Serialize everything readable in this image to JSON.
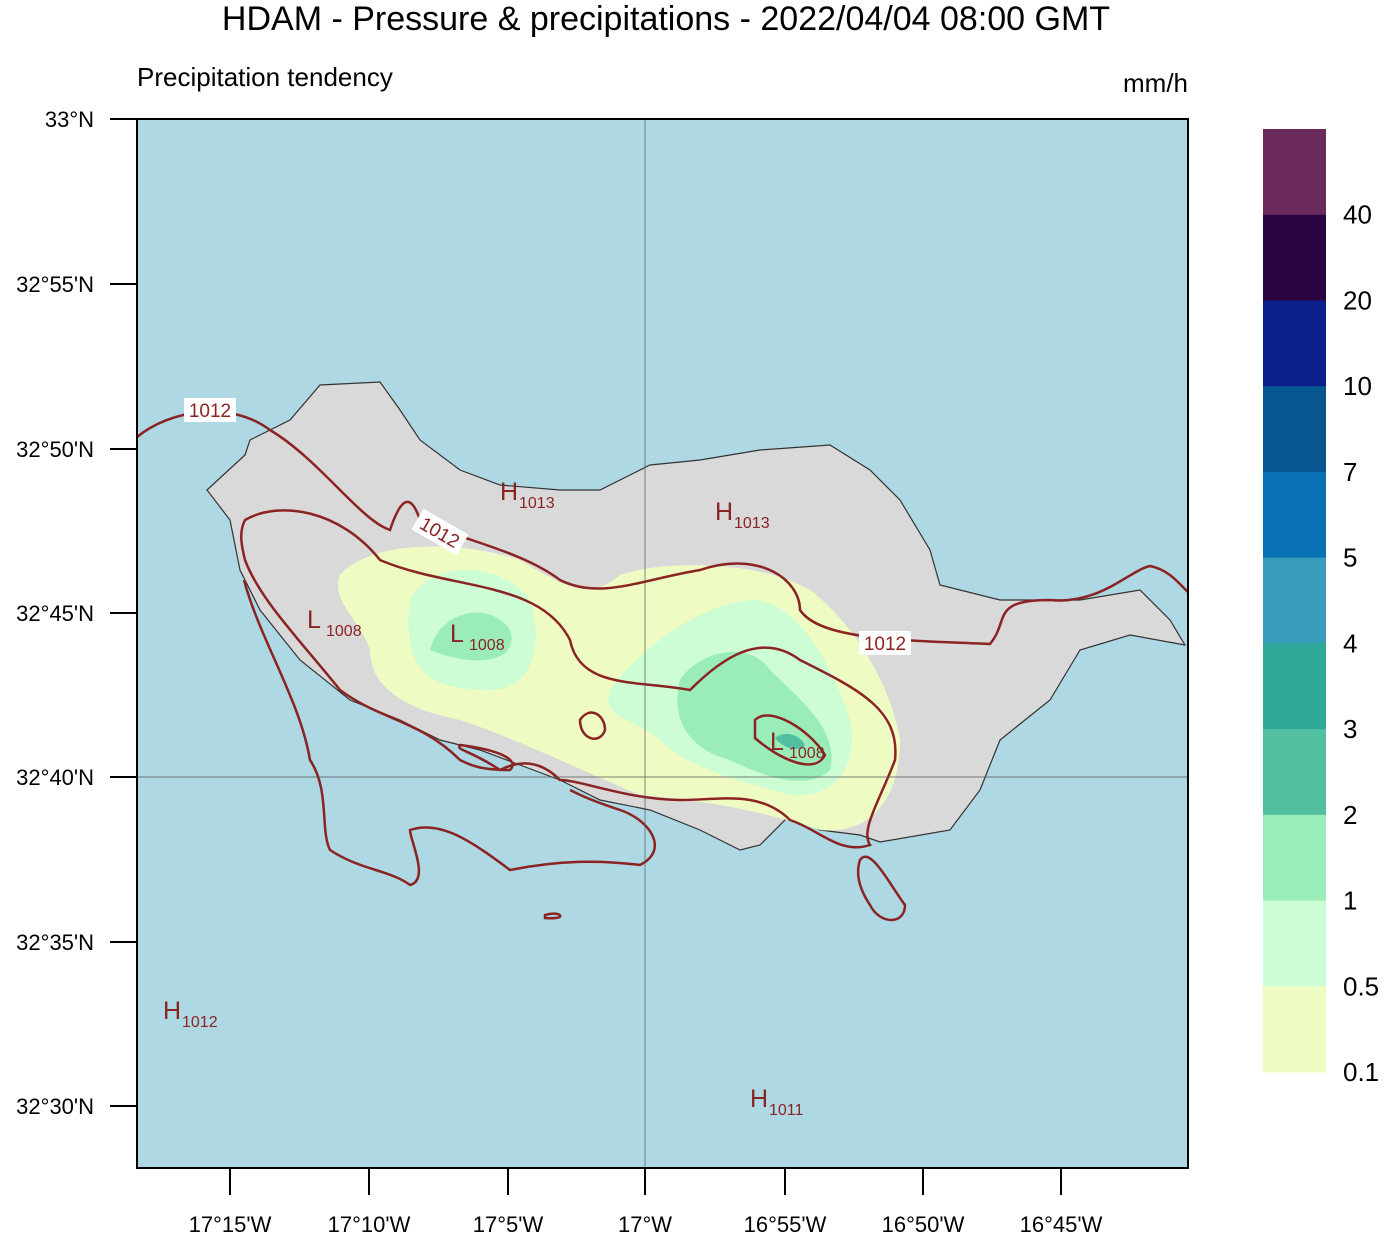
{
  "header": {
    "title": "HDAM - Pressure & precipitations  -  2022/04/04  08:00 GMT",
    "subtitle": "Precipitation tendency",
    "units": "mm/h"
  },
  "lat_labels": [
    "33°N",
    "32°55'N",
    "32°50'N",
    "32°45'N",
    "32°40'N",
    "32°35'N",
    "32°30'N"
  ],
  "lon_labels": [
    "17°15'W",
    "17°10'W",
    "17°5'W",
    "17°W",
    "16°55'W",
    "16°50'W",
    "16°45'W"
  ],
  "colorbar": {
    "labels": [
      "40",
      "20",
      "10",
      "7",
      "5",
      "4",
      "3",
      "2",
      "1",
      "0.5",
      "0.1"
    ],
    "colors": [
      "#6b2a5c",
      "#2b0540",
      "#0c1f8c",
      "#075690",
      "#0872b4",
      "#3a9cbb",
      "#30a898",
      "#52c0a0",
      "#9aedb8",
      "#ccfdd4",
      "#eefbc2"
    ]
  },
  "contour_labels": [
    "1012",
    "1012",
    "1012"
  ],
  "pressure_centers": [
    {
      "letter": "H",
      "value": "1013"
    },
    {
      "letter": "H",
      "value": "1013"
    },
    {
      "letter": "L",
      "value": "1008"
    },
    {
      "letter": "L",
      "value": "1008"
    },
    {
      "letter": "L",
      "value": "1008"
    },
    {
      "letter": "H",
      "value": "1012"
    },
    {
      "letter": "H",
      "value": "1011"
    }
  ]
}
